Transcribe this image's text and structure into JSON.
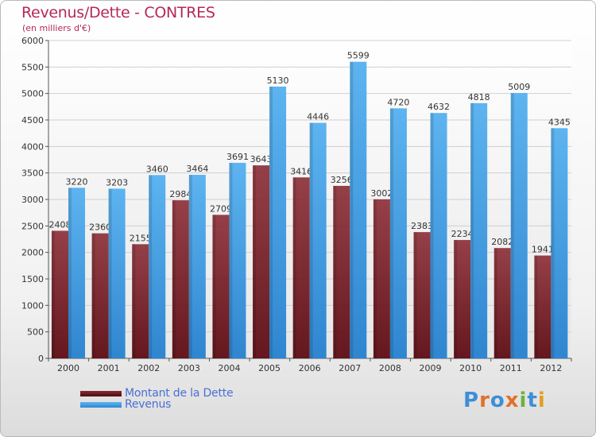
{
  "title": "Revenus/Dette - CONTRES",
  "subtitle": "(en milliers d'€)",
  "colors": {
    "debt": "#7a1e28",
    "revenue": "#4aa3e6",
    "axis_text": "#333333",
    "title": "#b5285b"
  },
  "logo_letters": [
    {
      "char": "P",
      "color": "#3d8ed8"
    },
    {
      "char": "r",
      "color": "#e2702a"
    },
    {
      "char": "o",
      "color": "#3d8ed8"
    },
    {
      "char": "x",
      "color": "#e2702a"
    },
    {
      "char": "i",
      "color": "#6bb33a"
    },
    {
      "char": "t",
      "color": "#3d8ed8"
    },
    {
      "char": "i",
      "color": "#e2a020"
    }
  ],
  "chart_data": {
    "type": "bar",
    "categories": [
      "2000",
      "2001",
      "2002",
      "2003",
      "2004",
      "2005",
      "2006",
      "2007",
      "2008",
      "2009",
      "2010",
      "2011",
      "2012"
    ],
    "series": [
      {
        "name": "Montant de la Dette",
        "color": "#7a1e28",
        "values": [
          2408,
          2360,
          2155,
          2984,
          2709,
          3643,
          3416,
          3256,
          3002,
          2383,
          2234,
          2082,
          1941
        ],
        "labels": [
          "2408",
          "2360",
          "2155",
          "2984",
          "2709",
          "3643",
          "3416",
          "3256",
          "3002",
          "2383",
          "2234",
          "2082",
          "1941"
        ]
      },
      {
        "name": "Revenus",
        "color": "#4aa3e6",
        "values": [
          3220,
          3203,
          3460,
          3464,
          3691,
          5130,
          4446,
          5599,
          4720,
          4632,
          4818,
          5009,
          4345
        ],
        "labels": [
          "3220",
          "3203",
          "3460",
          "3464",
          "3691",
          "5130",
          "4446",
          "5599",
          "4720",
          "4632",
          "4818",
          "5009",
          "4345"
        ]
      }
    ],
    "yticks": [
      0,
      500,
      1000,
      1500,
      2000,
      2500,
      3000,
      3500,
      4000,
      4500,
      5000,
      5500,
      6000
    ],
    "ylim": [
      0,
      6000
    ],
    "grid": true,
    "legend_position": "bottom-left"
  }
}
